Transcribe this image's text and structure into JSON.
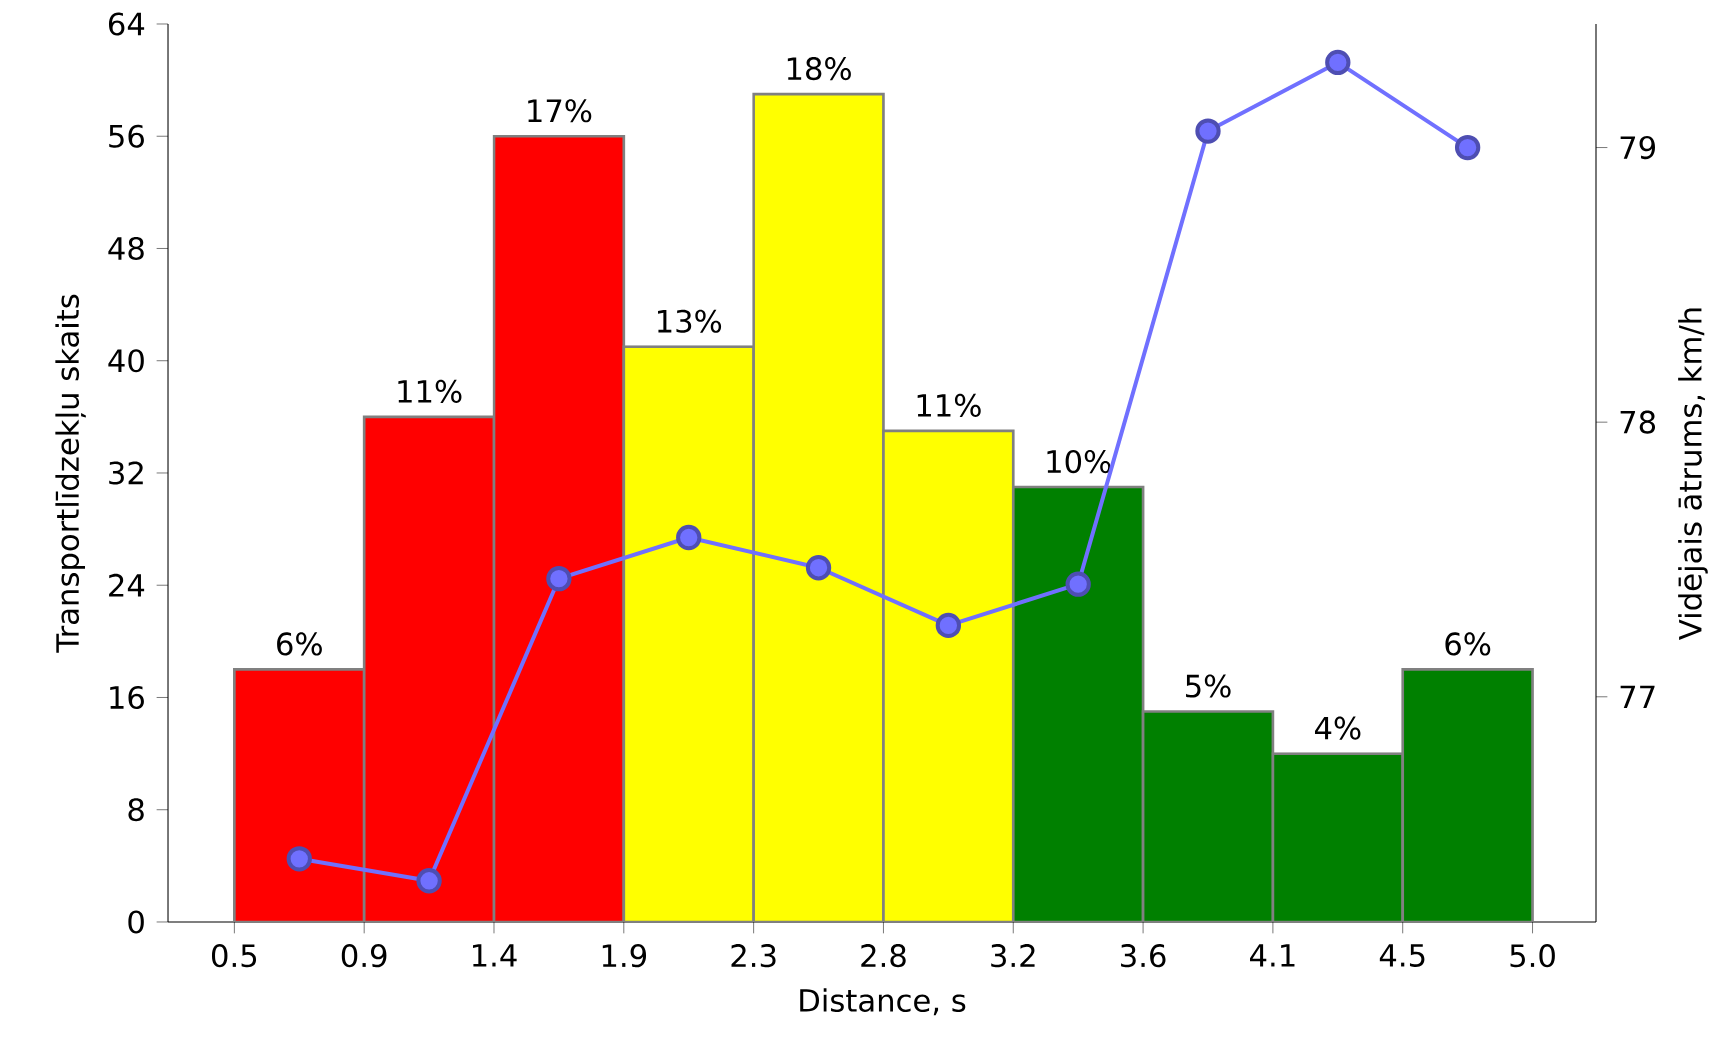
{
  "chart_data": {
    "type": "histogram",
    "xlabel": "Distance, s",
    "ylabel": "Transportlīdzekļu skaits",
    "y2label": "Vidējais ātrums, km/h",
    "bins": [
      0.5,
      0.95,
      1.4,
      1.85,
      2.3,
      2.75,
      3.2,
      3.65,
      4.1,
      4.55,
      5.0
    ],
    "values": [
      18,
      36,
      56,
      41,
      59,
      35,
      31,
      15,
      12,
      18
    ],
    "colors": [
      "#ff0000",
      "#ff0000",
      "#ff0000",
      "#ffff00",
      "#ffff00",
      "#ffff00",
      "#008000",
      "#008000",
      "#008000",
      "#008000"
    ],
    "annotations": [
      {
        "text": "6%",
        "x": 0.725,
        "y": 18
      },
      {
        "text": "11%",
        "x": 1.175,
        "y": 36
      },
      {
        "text": "17%",
        "x": 1.625,
        "y": 56
      },
      {
        "text": "13%",
        "x": 2.075,
        "y": 41
      },
      {
        "text": "18%",
        "x": 2.525,
        "y": 59
      },
      {
        "text": "11%",
        "x": 2.975,
        "y": 35
      },
      {
        "text": "10%",
        "x": 3.425,
        "y": 31
      },
      {
        "text": "5%",
        "x": 3.875,
        "y": 15
      },
      {
        "text": "4%",
        "x": 4.325,
        "y": 12
      },
      {
        "text": "6%",
        "x": 4.775,
        "y": 18
      }
    ],
    "xlim": [
      0.27,
      5.22
    ],
    "xticks": [
      0.5,
      {
        "value": 0.95,
        "label": "0.9"
      },
      1.4,
      {
        "value": 1.85,
        "label": "1.9"
      },
      2.3,
      {
        "value": 2.75,
        "label": "2.8"
      },
      3.2,
      {
        "value": 3.65,
        "label": "3.6"
      },
      4.1,
      {
        "value": 4.55,
        "label": "4.5"
      },
      {
        "value": 5.0,
        "label": "5.0"
      }
    ],
    "ylim": [
      0,
      64
    ],
    "yticks": [
      0,
      8,
      16,
      24,
      32,
      40,
      48,
      56,
      64
    ],
    "y2lim": [
      76.18,
      79.45
    ],
    "y2ticks": [
      77,
      78,
      79
    ],
    "series": [
      {
        "type": "line",
        "axis": "y2",
        "marker": "circle",
        "color": "#7070ff",
        "x": [
          0.725,
          1.175,
          1.625,
          2.075,
          2.525,
          2.975,
          3.425,
          3.875,
          4.325,
          4.775
        ],
        "values": [
          76.41,
          76.33,
          77.43,
          77.58,
          77.47,
          77.26,
          77.41,
          79.06,
          79.31,
          79.0
        ]
      }
    ]
  }
}
